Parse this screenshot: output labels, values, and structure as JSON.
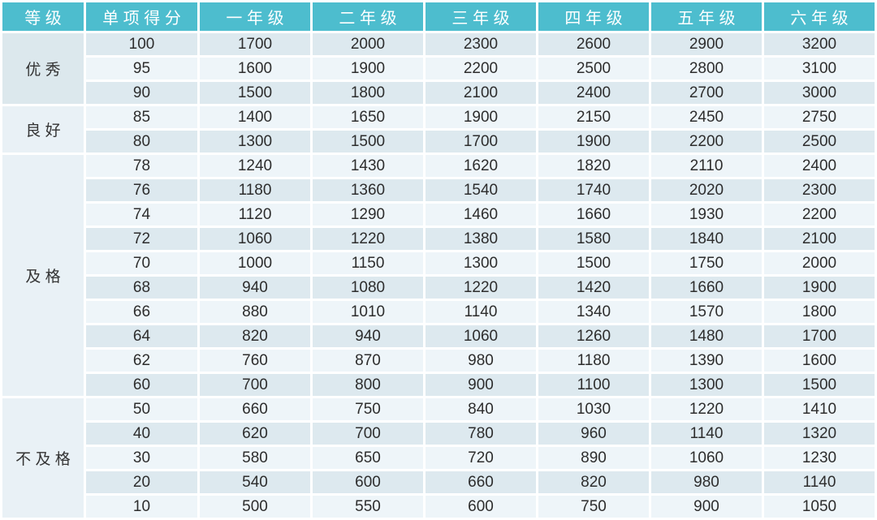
{
  "colors": {
    "header_bg": "#4dbdce",
    "header_text": "#ffffff",
    "row_dark": "#dde9ef",
    "row_light": "#eef5f9",
    "group_first_bg": "#dce8ed",
    "group_bg": "#e9f1f6",
    "cell_text": "#2d2d2d",
    "page_bg": "#ffffff"
  },
  "chart_data": {
    "type": "table",
    "title": "",
    "columns": [
      "等级",
      "单项得分",
      "一年级",
      "二年级",
      "三年级",
      "四年级",
      "五年级",
      "六年级"
    ],
    "groups": [
      {
        "label": "优秀",
        "rows": [
          [
            100,
            1700,
            2000,
            2300,
            2600,
            2900,
            3200
          ],
          [
            95,
            1600,
            1900,
            2200,
            2500,
            2800,
            3100
          ],
          [
            90,
            1500,
            1800,
            2100,
            2400,
            2700,
            3000
          ]
        ]
      },
      {
        "label": "良好",
        "rows": [
          [
            85,
            1400,
            1650,
            1900,
            2150,
            2450,
            2750
          ],
          [
            80,
            1300,
            1500,
            1700,
            1900,
            2200,
            2500
          ]
        ]
      },
      {
        "label": "及格",
        "rows": [
          [
            78,
            1240,
            1430,
            1620,
            1820,
            2110,
            2400
          ],
          [
            76,
            1180,
            1360,
            1540,
            1740,
            2020,
            2300
          ],
          [
            74,
            1120,
            1290,
            1460,
            1660,
            1930,
            2200
          ],
          [
            72,
            1060,
            1220,
            1380,
            1580,
            1840,
            2100
          ],
          [
            70,
            1000,
            1150,
            1300,
            1500,
            1750,
            2000
          ],
          [
            68,
            940,
            1080,
            1220,
            1420,
            1660,
            1900
          ],
          [
            66,
            880,
            1010,
            1140,
            1340,
            1570,
            1800
          ],
          [
            64,
            820,
            940,
            1060,
            1260,
            1480,
            1700
          ],
          [
            62,
            760,
            870,
            980,
            1180,
            1390,
            1600
          ],
          [
            60,
            700,
            800,
            900,
            1100,
            1300,
            1500
          ]
        ]
      },
      {
        "label": "不及格",
        "rows": [
          [
            50,
            660,
            750,
            840,
            1030,
            1220,
            1410
          ],
          [
            40,
            620,
            700,
            780,
            960,
            1140,
            1320
          ],
          [
            30,
            580,
            650,
            720,
            890,
            1060,
            1230
          ],
          [
            20,
            540,
            600,
            660,
            820,
            980,
            1140
          ],
          [
            10,
            500,
            550,
            600,
            750,
            900,
            1050
          ]
        ]
      }
    ]
  }
}
